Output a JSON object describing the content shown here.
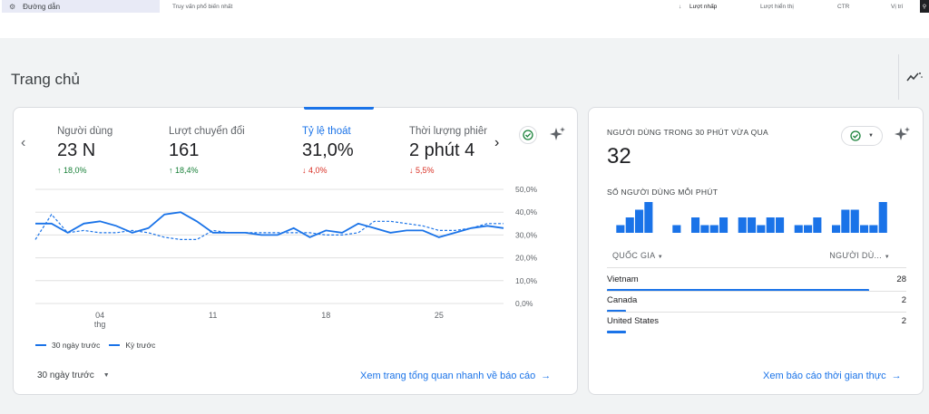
{
  "topbar": {
    "chip_label": "Đường dẫn",
    "query_label": "Truy vấn phổ biến nhất",
    "col_clicks": "Lượt nhấp",
    "col_impressions": "Lượt hiển thị",
    "col_ctr": "CTR",
    "col_position": "Vị trí"
  },
  "page": {
    "title": "Trang chủ"
  },
  "overview": {
    "metrics": [
      {
        "label": "Người dùng",
        "value": "23 N",
        "delta": "18,0%",
        "direction": "up"
      },
      {
        "label": "Lượt chuyển đổi",
        "value": "161",
        "delta": "18,4%",
        "direction": "up"
      },
      {
        "label": "Tỷ lệ thoát",
        "value": "31,0%",
        "delta": "4,0%",
        "direction": "down"
      },
      {
        "label": "Thời lượng phiên",
        "value": "2 phút 4",
        "delta": "5,5%",
        "direction": "down"
      }
    ],
    "legend_current": "30 ngày trước",
    "legend_previous": "Kỳ trước",
    "date_range": "30 ngày trước",
    "link": "Xem trang tổng quan nhanh về báo cáo"
  },
  "chart_data": {
    "type": "line",
    "x_ticks": [
      "04",
      "11",
      "18",
      "25"
    ],
    "x_tick_sub": "thg",
    "y_ticks": [
      "50,0%",
      "40,0%",
      "30,0%",
      "20,0%",
      "10,0%",
      "0,0%"
    ],
    "ylim": [
      0,
      50
    ],
    "series": [
      {
        "name": "30 ngày trước",
        "style": "solid",
        "values": [
          35,
          35,
          31,
          35,
          36,
          34,
          31,
          33,
          39,
          40,
          36,
          31,
          31,
          31,
          30,
          30,
          33,
          29,
          32,
          31,
          35,
          33,
          31,
          32,
          32,
          29,
          31,
          33,
          34,
          33
        ]
      },
      {
        "name": "Kỳ trước",
        "style": "dashed",
        "values": [
          28,
          39,
          31,
          32,
          31,
          31,
          32,
          31,
          29,
          28,
          28,
          32,
          31,
          31,
          31,
          31,
          31,
          31,
          30,
          30,
          31,
          36,
          36,
          35,
          34,
          32,
          32,
          33,
          35,
          35
        ]
      }
    ]
  },
  "realtime": {
    "title": "NGƯỜI DÙNG TRONG 30 PHÚT VỪA QUA",
    "value": "32",
    "subtitle": "SỐ NGƯỜI DÙNG MỖI PHÚT",
    "per_minute": [
      0,
      1,
      2,
      3,
      4,
      0,
      0,
      1,
      0,
      2,
      1,
      1,
      2,
      0,
      2,
      2,
      1,
      2,
      2,
      0,
      1,
      1,
      2,
      0,
      1,
      3,
      3,
      1,
      1,
      4
    ],
    "col_country": "QUỐC GIA",
    "col_users": "NGƯỜI DÙ...",
    "rows": [
      {
        "country": "Vietnam",
        "users": "28",
        "share": 0.875
      },
      {
        "country": "Canada",
        "users": "2",
        "share": 0.0625
      },
      {
        "country": "United States",
        "users": "2",
        "share": 0.0625
      }
    ],
    "link": "Xem báo cáo thời gian thực"
  }
}
